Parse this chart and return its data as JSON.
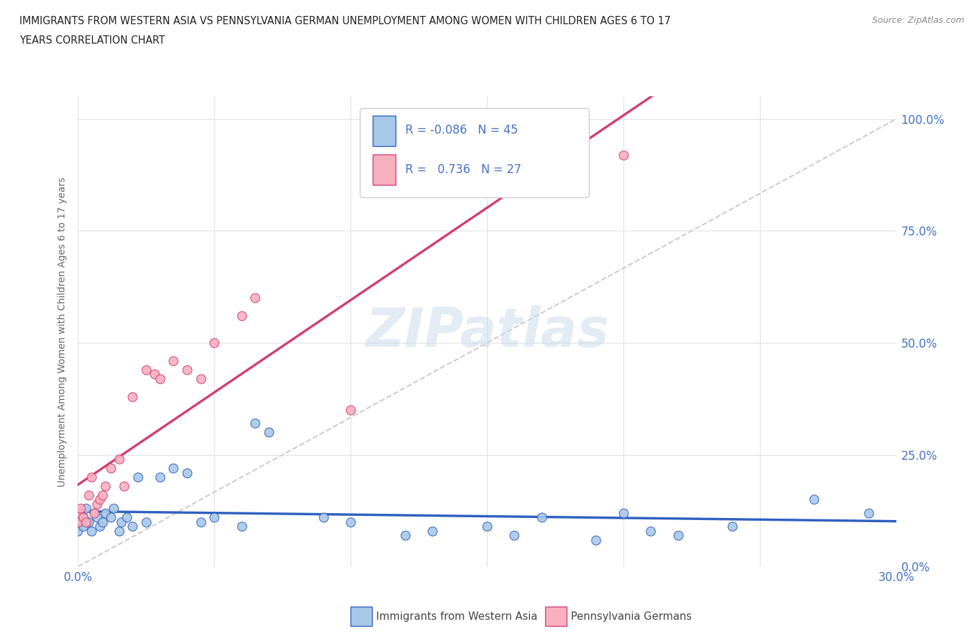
{
  "title_line1": "IMMIGRANTS FROM WESTERN ASIA VS PENNSYLVANIA GERMAN UNEMPLOYMENT AMONG WOMEN WITH CHILDREN AGES 6 TO 17",
  "title_line2": "YEARS CORRELATION CHART",
  "source_text": "Source: ZipAtlas.com",
  "ylabel": "Unemployment Among Women with Children Ages 6 to 17 years",
  "xlim": [
    0.0,
    0.3
  ],
  "ylim": [
    0.0,
    1.05
  ],
  "x_tick_positions": [
    0.0,
    0.05,
    0.1,
    0.15,
    0.2,
    0.25,
    0.3
  ],
  "x_tick_labels": [
    "0.0%",
    "",
    "",
    "",
    "",
    "",
    "30.0%"
  ],
  "y_tick_positions": [
    0.0,
    0.25,
    0.5,
    0.75,
    1.0
  ],
  "y_tick_labels": [
    "0.0%",
    "25.0%",
    "50.0%",
    "75.0%",
    "100.0%"
  ],
  "R_western": -0.086,
  "N_western": 45,
  "R_pagerman": 0.736,
  "N_pagerman": 27,
  "color_western": "#a8c8e8",
  "color_pagerman": "#f8b0c0",
  "line_color_western": "#3060c0",
  "line_color_pagerman": "#d04070",
  "diag_color": "#cccccc",
  "watermark": "ZIPatlas",
  "western_x": [
    0.0,
    0.0,
    0.0,
    0.001,
    0.001,
    0.002,
    0.002,
    0.003,
    0.004,
    0.005,
    0.006,
    0.007,
    0.008,
    0.009,
    0.01,
    0.012,
    0.013,
    0.015,
    0.016,
    0.018,
    0.02,
    0.022,
    0.025,
    0.03,
    0.035,
    0.04,
    0.045,
    0.05,
    0.06,
    0.065,
    0.07,
    0.09,
    0.1,
    0.12,
    0.13,
    0.15,
    0.16,
    0.17,
    0.19,
    0.2,
    0.21,
    0.22,
    0.24,
    0.27,
    0.29
  ],
  "western_y": [
    0.11,
    0.09,
    0.08,
    0.1,
    0.12,
    0.11,
    0.09,
    0.13,
    0.1,
    0.08,
    0.12,
    0.11,
    0.09,
    0.1,
    0.12,
    0.11,
    0.13,
    0.08,
    0.1,
    0.11,
    0.09,
    0.2,
    0.1,
    0.2,
    0.22,
    0.21,
    0.1,
    0.11,
    0.09,
    0.32,
    0.3,
    0.11,
    0.1,
    0.07,
    0.08,
    0.09,
    0.07,
    0.11,
    0.06,
    0.12,
    0.08,
    0.07,
    0.09,
    0.15,
    0.12
  ],
  "pagerman_x": [
    0.0,
    0.0,
    0.001,
    0.002,
    0.003,
    0.004,
    0.005,
    0.006,
    0.007,
    0.008,
    0.009,
    0.01,
    0.012,
    0.015,
    0.017,
    0.02,
    0.025,
    0.028,
    0.03,
    0.035,
    0.04,
    0.045,
    0.05,
    0.06,
    0.065,
    0.1,
    0.2
  ],
  "pagerman_y": [
    0.12,
    0.1,
    0.13,
    0.11,
    0.1,
    0.16,
    0.2,
    0.12,
    0.14,
    0.15,
    0.16,
    0.18,
    0.22,
    0.24,
    0.18,
    0.38,
    0.44,
    0.43,
    0.42,
    0.46,
    0.44,
    0.42,
    0.5,
    0.56,
    0.6,
    0.35,
    0.92
  ]
}
